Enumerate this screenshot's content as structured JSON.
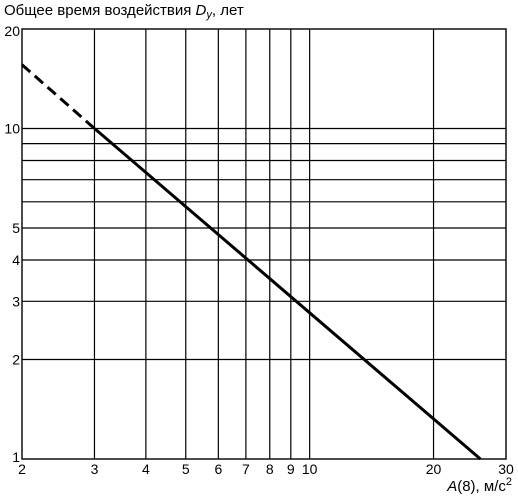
{
  "chart_data": {
    "type": "line",
    "ylabel_text": "Общее время воздействия ",
    "ylabel_symbol": "D",
    "ylabel_subscript": "y",
    "ylabel_unit": ", лет",
    "xlabel_symbol": "A",
    "xlabel_text": "(8), м/с",
    "xlabel_superscript": "2",
    "x_scale": "log",
    "y_scale": "log",
    "xlim": [
      2,
      30
    ],
    "ylim": [
      1,
      20
    ],
    "grid": true,
    "x_ticks": [
      2,
      3,
      4,
      5,
      6,
      7,
      8,
      9,
      10,
      20,
      30
    ],
    "x_tick_labels": [
      "2",
      "3",
      "4",
      "5",
      "6",
      "7",
      "8",
      "9",
      "10",
      "20",
      "30"
    ],
    "y_ticks": [
      1,
      2,
      3,
      4,
      5,
      10,
      20
    ],
    "y_tick_labels": [
      "1",
      "2",
      "3",
      "4",
      "5",
      "10",
      "20"
    ],
    "x_gridlines": [
      3,
      4,
      5,
      6,
      7,
      8,
      9,
      10,
      20
    ],
    "y_gridlines": [
      2,
      3,
      4,
      5,
      6,
      7,
      8,
      9,
      10
    ],
    "series": [
      {
        "style": "dashed",
        "color": "#000000",
        "x": [
          2,
          3
        ],
        "y": [
          15.6,
          10.0
        ]
      },
      {
        "style": "solid",
        "color": "#000000",
        "x": [
          3,
          26
        ],
        "y": [
          10.0,
          1.0
        ]
      }
    ]
  }
}
